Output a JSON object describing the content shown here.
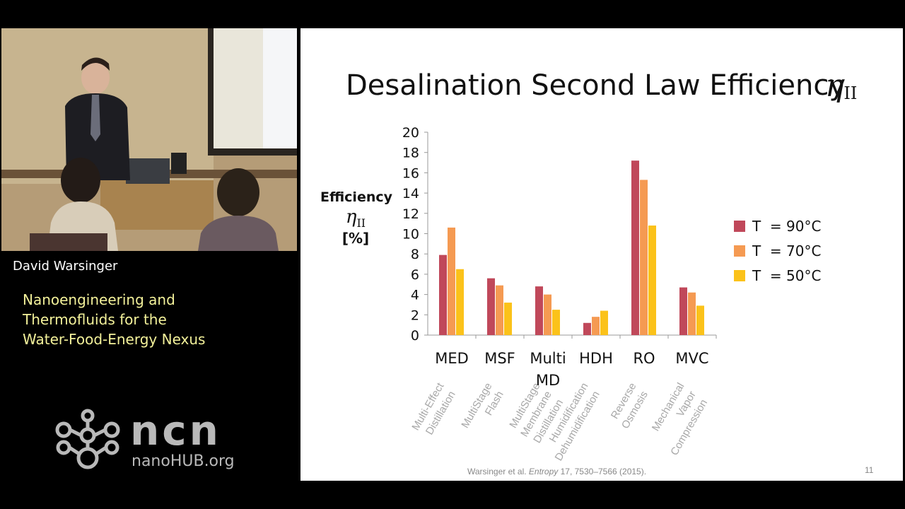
{
  "speaker": "David Warsinger",
  "talk_title_lines": [
    "Nanoengineering and",
    "Thermofluids for the",
    "Water-Food-Energy Nexus"
  ],
  "logo": {
    "word": "ncn",
    "sub": "nanoHUB.org"
  },
  "slide": {
    "title": "Desalination Second Law Efficiency",
    "title_symbol": "η",
    "title_symbol_sub": "II",
    "ylabel_line1": "Efficiency",
    "ylabel_symbol": "η",
    "ylabel_symbol_sub": "II",
    "ylabel_line3": "[%]",
    "citation_prefix": "Warsinger et al. ",
    "citation_journal": "Entropy",
    "citation_suffix": " 17, 7530–7566 (2015).",
    "page_number": "11"
  },
  "chart_data": {
    "type": "bar",
    "categories": [
      "MED",
      "MSF",
      "Multi MD",
      "HDH",
      "RO",
      "MVC"
    ],
    "category_descriptions": [
      [
        "Multi-Effect",
        "Distillation"
      ],
      [
        "MultiStage",
        "Flash"
      ],
      [
        "MultiStage",
        "Membrane",
        "Distillation"
      ],
      [
        "Humidification",
        "Dehumidification"
      ],
      [
        "Reverse",
        "Osmosis"
      ],
      [
        "Mechanical",
        "Vapor",
        "Compression"
      ]
    ],
    "series": [
      {
        "name": "T  = 90°C",
        "color": "#c0485a",
        "values": [
          7.9,
          5.6,
          4.8,
          1.2,
          17.2,
          4.7
        ]
      },
      {
        "name": "T  = 70°C",
        "color": "#f59a52",
        "values": [
          10.6,
          4.9,
          4.0,
          1.8,
          15.3,
          4.2
        ]
      },
      {
        "name": "T  = 50°C",
        "color": "#fbc21a",
        "values": [
          6.5,
          3.2,
          2.5,
          2.4,
          10.8,
          2.9
        ]
      }
    ],
    "ylim": [
      0,
      20
    ],
    "yticks": [
      0,
      2,
      4,
      6,
      8,
      10,
      12,
      14,
      16,
      18,
      20
    ],
    "legend_position": "right",
    "grid": false
  }
}
